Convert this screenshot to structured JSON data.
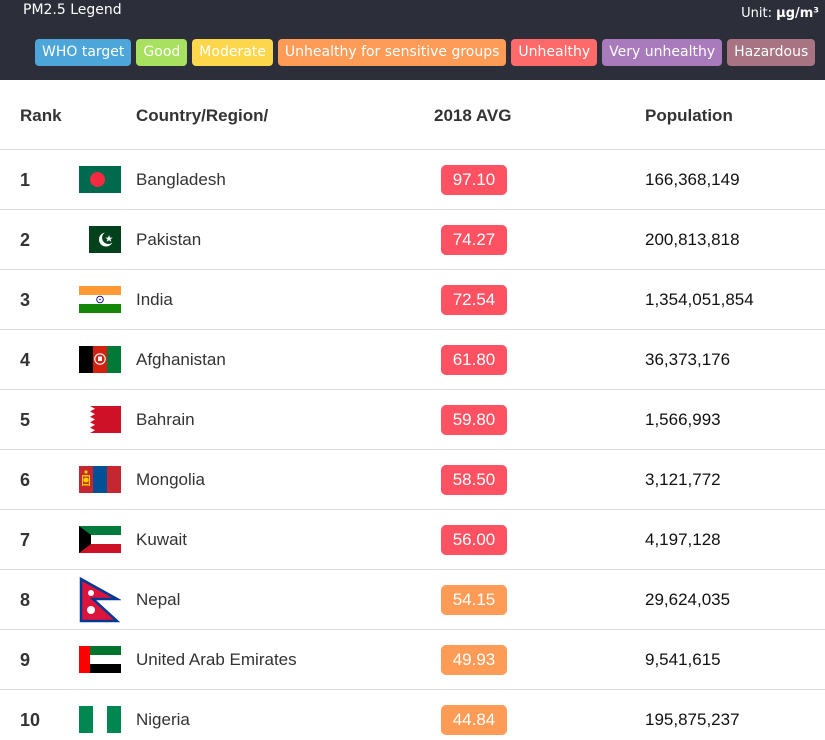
{
  "legend": {
    "title": "PM2.5 Legend",
    "unit_label": "Unit: ",
    "unit_value": "μg/m³",
    "items": [
      {
        "label": "WHO target",
        "color": "#4da6d9"
      },
      {
        "label": "Good",
        "color": "#a8e05f"
      },
      {
        "label": "Moderate",
        "color": "#fdd74b"
      },
      {
        "label": "Unhealthy for sensitive groups",
        "color": "#fe9b57"
      },
      {
        "label": "Unhealthy",
        "color": "#fe6a69"
      },
      {
        "label": "Very unhealthy",
        "color": "#a97abc"
      },
      {
        "label": "Hazardous",
        "color": "#a87383"
      }
    ]
  },
  "table": {
    "headers": {
      "rank": "Rank",
      "country": "Country/Region/",
      "avg": "2018 AVG",
      "population": "Population"
    },
    "rows": [
      {
        "rank": "1",
        "country": "Bangladesh",
        "flag": "bangladesh-flag-icon",
        "avg": "97.10",
        "level_color": "#fe5262",
        "population": "166,368,149"
      },
      {
        "rank": "2",
        "country": "Pakistan",
        "flag": "pakistan-flag-icon",
        "avg": "74.27",
        "level_color": "#fe5262",
        "population": "200,813,818"
      },
      {
        "rank": "3",
        "country": "India",
        "flag": "india-flag-icon",
        "avg": "72.54",
        "level_color": "#fe5262",
        "population": "1,354,051,854"
      },
      {
        "rank": "4",
        "country": "Afghanistan",
        "flag": "afghanistan-flag-icon",
        "avg": "61.80",
        "level_color": "#fe5262",
        "population": "36,373,176"
      },
      {
        "rank": "5",
        "country": "Bahrain",
        "flag": "bahrain-flag-icon",
        "avg": "59.80",
        "level_color": "#fe5262",
        "population": "1,566,993"
      },
      {
        "rank": "6",
        "country": "Mongolia",
        "flag": "mongolia-flag-icon",
        "avg": "58.50",
        "level_color": "#fe5262",
        "population": "3,121,772"
      },
      {
        "rank": "7",
        "country": "Kuwait",
        "flag": "kuwait-flag-icon",
        "avg": "56.00",
        "level_color": "#fe5262",
        "population": "4,197,128"
      },
      {
        "rank": "8",
        "country": "Nepal",
        "flag": "nepal-flag-icon",
        "avg": "54.15",
        "level_color": "#fe9b57",
        "population": "29,624,035"
      },
      {
        "rank": "9",
        "country": "United Arab Emirates",
        "flag": "uae-flag-icon",
        "avg": "49.93",
        "level_color": "#fe9b57",
        "population": "9,541,615"
      },
      {
        "rank": "10",
        "country": "Nigeria",
        "flag": "nigeria-flag-icon",
        "avg": "44.84",
        "level_color": "#fe9b57",
        "population": "195,875,237"
      }
    ]
  }
}
